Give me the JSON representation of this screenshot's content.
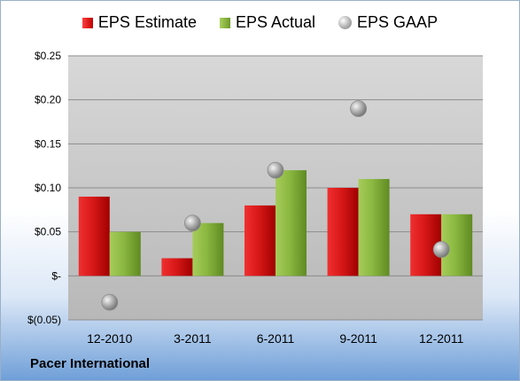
{
  "company": "Pacer International",
  "legend": {
    "estimate": "EPS Estimate",
    "actual": "EPS Actual",
    "gaap": "EPS GAAP"
  },
  "colors": {
    "estimate": "#d01818",
    "actual": "#8ab840",
    "gaap": "#a8a8a8",
    "plot_bg": "#c8c8c8"
  },
  "chart_data": {
    "type": "bar",
    "categories": [
      "12-2010",
      "3-2011",
      "6-2011",
      "9-2011",
      "12-2011"
    ],
    "series": [
      {
        "name": "EPS Estimate",
        "type": "bar",
        "values": [
          0.09,
          0.02,
          0.08,
          0.1,
          0.07
        ]
      },
      {
        "name": "EPS Actual",
        "type": "bar",
        "values": [
          0.05,
          0.06,
          0.12,
          0.11,
          0.07
        ]
      },
      {
        "name": "EPS GAAP",
        "type": "scatter",
        "values": [
          -0.03,
          0.06,
          0.12,
          0.19,
          0.03
        ]
      }
    ],
    "ylim": [
      -0.05,
      0.25
    ],
    "yticks": [
      -0.05,
      0,
      0.05,
      0.1,
      0.15,
      0.2,
      0.25
    ],
    "ytick_labels": [
      "$(0.05)",
      "$-",
      "$0.05",
      "$0.10",
      "$0.15",
      "$0.20",
      "$0.25"
    ],
    "grid": true,
    "legend_position": "top"
  }
}
